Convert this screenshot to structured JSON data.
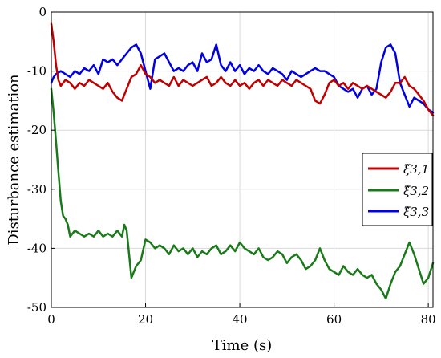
{
  "chart_data": {
    "type": "line",
    "xlabel": "Time (s)",
    "ylabel": "Disturbance estimation",
    "xlim": [
      0,
      81
    ],
    "ylim": [
      -50,
      0
    ],
    "xticks": [
      0,
      20,
      40,
      60,
      80
    ],
    "yticks": [
      0,
      -10,
      -20,
      -30,
      -40,
      -50
    ],
    "grid": true,
    "legend_position": "right",
    "series": [
      {
        "name": "ξ̂3,1",
        "color": "#c00000",
        "x": [
          0,
          0.5,
          1,
          1.5,
          2,
          3,
          4,
          5,
          6,
          7,
          8,
          9,
          10,
          11,
          12,
          13,
          14,
          15,
          16,
          17,
          18,
          19,
          20,
          21,
          22,
          23,
          24,
          25,
          26,
          27,
          28,
          29,
          30,
          31,
          32,
          33,
          34,
          35,
          36,
          37,
          38,
          39,
          40,
          41,
          42,
          43,
          44,
          45,
          46,
          47,
          48,
          49,
          50,
          51,
          52,
          53,
          54,
          55,
          56,
          57,
          58,
          59,
          60,
          61,
          62,
          63,
          64,
          65,
          66,
          67,
          68,
          69,
          70,
          71,
          72,
          73,
          74,
          75,
          76,
          77,
          78,
          79,
          80,
          81
        ],
        "y": [
          -2,
          -5,
          -9,
          -11.5,
          -12.5,
          -11.5,
          -12,
          -13,
          -12,
          -12.5,
          -11.5,
          -12,
          -12.5,
          -13,
          -12,
          -13.5,
          -14.5,
          -15,
          -13,
          -11,
          -10.5,
          -9,
          -10.5,
          -11,
          -12,
          -11.5,
          -12,
          -12.5,
          -11,
          -12.5,
          -11.5,
          -12,
          -12.5,
          -12,
          -11.5,
          -11,
          -12.5,
          -12,
          -11,
          -12,
          -12.5,
          -11.5,
          -12.5,
          -12,
          -13,
          -12,
          -11.5,
          -12.5,
          -11.5,
          -12,
          -12.5,
          -11.5,
          -12,
          -12.5,
          -11.5,
          -12,
          -12.5,
          -13,
          -15,
          -15.5,
          -14,
          -12,
          -11.5,
          -12.5,
          -12,
          -13,
          -12,
          -12.5,
          -13,
          -12.5,
          -13,
          -13.5,
          -14,
          -14.5,
          -13.5,
          -12,
          -12,
          -11,
          -12.5,
          -13,
          -14,
          -15,
          -16.5,
          -17.5
        ]
      },
      {
        "name": "ξ̂3,2",
        "color": "#1a7a1a",
        "x": [
          0,
          0.5,
          1,
          1.5,
          2,
          2.5,
          3,
          3.5,
          4,
          5,
          6,
          7,
          8,
          9,
          10,
          11,
          12,
          13,
          14,
          15,
          15.5,
          16,
          16.5,
          17,
          18,
          19,
          20,
          21,
          22,
          23,
          24,
          25,
          26,
          27,
          28,
          29,
          30,
          31,
          32,
          33,
          34,
          35,
          36,
          37,
          38,
          39,
          40,
          41,
          42,
          43,
          44,
          45,
          46,
          47,
          48,
          49,
          50,
          51,
          52,
          53,
          54,
          55,
          56,
          57,
          58,
          59,
          60,
          61,
          62,
          63,
          64,
          65,
          66,
          67,
          68,
          69,
          70,
          71,
          72,
          73,
          74,
          75,
          76,
          77,
          78,
          79,
          80,
          81
        ],
        "y": [
          -13,
          -17,
          -22,
          -27,
          -32,
          -34.5,
          -35,
          -36,
          -38,
          -37,
          -37.5,
          -38,
          -37.5,
          -38,
          -37,
          -38,
          -37.5,
          -38,
          -37,
          -38,
          -36,
          -37,
          -41,
          -45,
          -43,
          -42,
          -38.5,
          -39,
          -40,
          -39.5,
          -40,
          -41,
          -39.5,
          -40.5,
          -40,
          -41,
          -40,
          -41.5,
          -40.5,
          -41,
          -40,
          -39.5,
          -41,
          -40.5,
          -39.5,
          -40.5,
          -39,
          -40,
          -40.5,
          -41,
          -40,
          -41.5,
          -42,
          -41.5,
          -40.5,
          -41,
          -42.5,
          -41.5,
          -41,
          -42,
          -43.5,
          -43,
          -42,
          -40,
          -42,
          -43.5,
          -44,
          -44.5,
          -43,
          -44,
          -44.5,
          -43.5,
          -44.5,
          -45,
          -44.5,
          -46,
          -47,
          -48.5,
          -46,
          -44,
          -43,
          -41,
          -39,
          -41,
          -43.5,
          -46,
          -45,
          -42.5
        ]
      },
      {
        "name": "ξ̂3,3",
        "color": "#0000e0",
        "x": [
          0,
          0.5,
          1,
          2,
          3,
          4,
          5,
          6,
          7,
          8,
          9,
          10,
          11,
          12,
          13,
          14,
          15,
          16,
          17,
          18,
          19,
          20,
          21,
          22,
          23,
          24,
          25,
          26,
          27,
          28,
          29,
          30,
          31,
          32,
          33,
          34,
          35,
          36,
          37,
          38,
          39,
          40,
          41,
          42,
          43,
          44,
          45,
          46,
          47,
          48,
          49,
          50,
          51,
          52,
          53,
          54,
          55,
          56,
          57,
          58,
          59,
          60,
          61,
          62,
          63,
          64,
          65,
          66,
          67,
          68,
          69,
          70,
          71,
          72,
          73,
          74,
          75,
          76,
          77,
          78,
          79,
          80,
          81
        ],
        "y": [
          -12,
          -11,
          -10.5,
          -10,
          -10.5,
          -11,
          -10,
          -10.5,
          -9.5,
          -10,
          -9,
          -10.5,
          -8,
          -8.5,
          -8,
          -9,
          -8,
          -7,
          -6,
          -5.5,
          -7,
          -10,
          -13,
          -8,
          -7.5,
          -7,
          -8.5,
          -10,
          -9.5,
          -10,
          -9,
          -8.5,
          -10,
          -7,
          -8.5,
          -8,
          -5.5,
          -9,
          -10,
          -8.5,
          -10,
          -9,
          -10.5,
          -9.5,
          -10,
          -9,
          -10,
          -10.5,
          -9.5,
          -10,
          -10.5,
          -11.5,
          -10,
          -10.5,
          -11,
          -10.5,
          -10,
          -9.5,
          -10,
          -10,
          -10.5,
          -11,
          -12.5,
          -13,
          -13.5,
          -13,
          -14.5,
          -13,
          -12.5,
          -14,
          -13,
          -8.5,
          -6,
          -5.5,
          -7,
          -12,
          -14,
          -16,
          -14.5,
          -15,
          -15.5,
          -16.5,
          -17
        ]
      }
    ]
  }
}
